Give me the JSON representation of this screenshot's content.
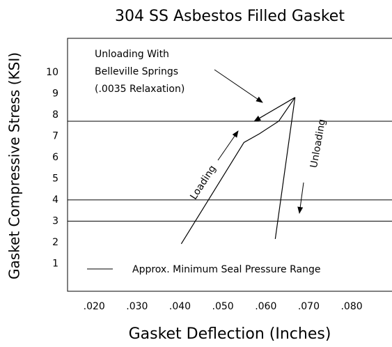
{
  "chart_data": {
    "type": "line",
    "title": "304 SS Asbestos Filled Gasket",
    "x_label": "Gasket Deflection (Inches)",
    "y_label": "Gasket Compressive Stress (KSI)",
    "xlim": [
      0.0138,
      0.0894
    ],
    "ylim": [
      -0.3,
      11.6
    ],
    "xticks": [
      {
        "value": 0.02,
        "label": ".020"
      },
      {
        "value": 0.03,
        "label": ".030"
      },
      {
        "value": 0.04,
        "label": ".040"
      },
      {
        "value": 0.05,
        "label": ".050"
      },
      {
        "value": 0.06,
        "label": ".060"
      },
      {
        "value": 0.07,
        "label": ".070"
      },
      {
        "value": 0.08,
        "label": ".080"
      }
    ],
    "yticks": [
      1,
      2,
      3,
      4,
      5,
      6,
      7,
      8,
      9,
      10
    ],
    "hlines": [
      7.7,
      4,
      3
    ],
    "series": [
      {
        "color": "#000000",
        "x": [
          0.0403,
          0.0549,
          0.0585,
          0.063,
          0.0668
        ],
        "values": [
          1.93,
          6.7,
          7.11,
          7.7,
          8.82
        ]
      },
      {
        "color": "#000000",
        "x": [
          0.0668,
          0.0622
        ],
        "values": [
          8.82,
          2.16
        ]
      },
      {
        "color": "#000000",
        "x": [
          0.0668,
          0.0573
        ],
        "values": [
          8.82,
          7.7
        ]
      }
    ],
    "annotations": [
      "Unloading With",
      "Belleville Springs",
      "(.0035 Relaxation)",
      "Loading",
      "Unloading"
    ],
    "legend": {
      "label": "Approx. Minimum Seal Pressure Range"
    }
  }
}
